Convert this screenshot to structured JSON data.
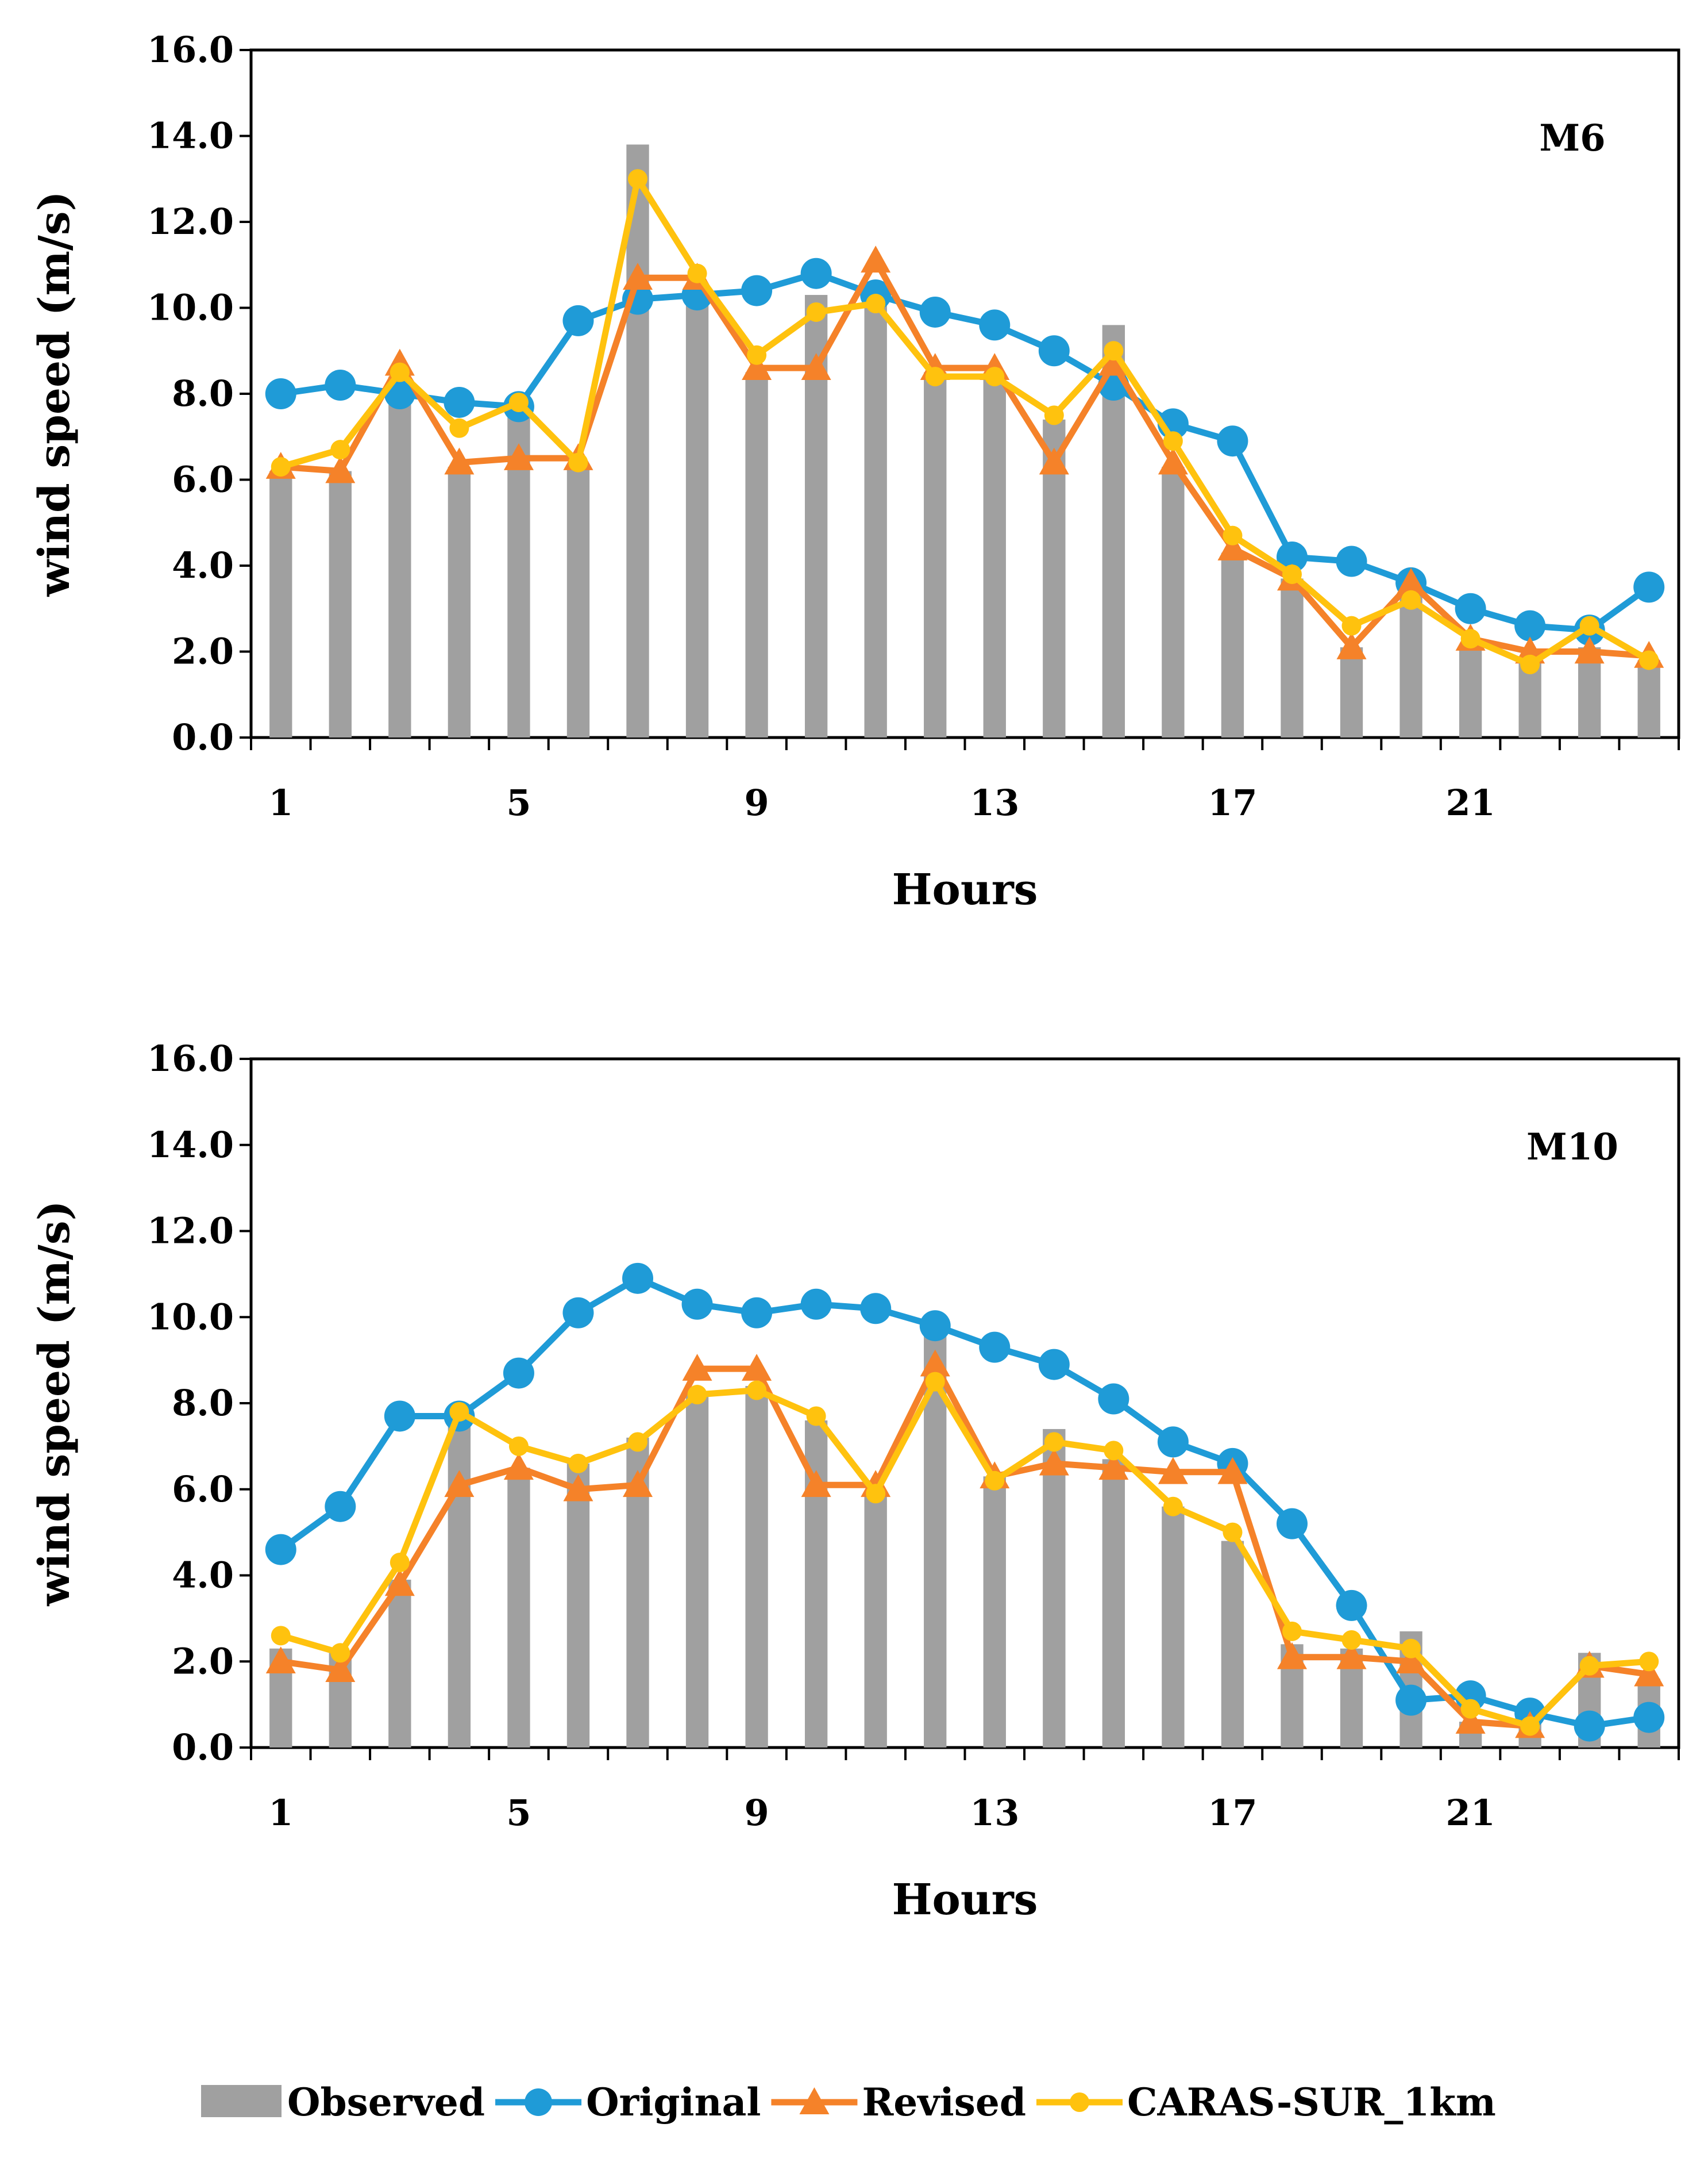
{
  "legend": [
    {
      "name": "Observed",
      "color": "#a0a0a0",
      "kind": "bar"
    },
    {
      "name": "Original",
      "color": "#1f9bd7",
      "kind": "circle"
    },
    {
      "name": "Revised",
      "color": "#f58229",
      "kind": "triangle"
    },
    {
      "name": "CARAS-SUR_1km",
      "color": "#ffc20e",
      "kind": "dot"
    }
  ],
  "chart_data": [
    {
      "type": "bar+line",
      "panel_label": "M6",
      "xlabel": "Hours",
      "ylabel": "wind speed (m/s)",
      "ylim": [
        0,
        16
      ],
      "yticks": [
        "0.0",
        "2.0",
        "4.0",
        "6.0",
        "8.0",
        "10.0",
        "12.0",
        "14.0",
        "16.0"
      ],
      "xticks": [
        "1",
        "5",
        "9",
        "13",
        "17",
        "21"
      ],
      "x": [
        1,
        2,
        3,
        4,
        5,
        6,
        7,
        8,
        9,
        10,
        11,
        12,
        13,
        14,
        15,
        16,
        17,
        18,
        19,
        20,
        21,
        22,
        23,
        24
      ],
      "series": [
        {
          "name": "Observed",
          "kind": "bar",
          "color": "#a0a0a0",
          "values": [
            6.2,
            6.2,
            8.4,
            6.3,
            7.6,
            6.3,
            13.8,
            10.5,
            8.5,
            10.3,
            10.3,
            8.5,
            8.4,
            7.4,
            9.6,
            6.3,
            4.3,
            3.7,
            2.1,
            3.5,
            2.1,
            1.8,
            2.1,
            1.8
          ]
        },
        {
          "name": "Original",
          "kind": "circle",
          "color": "#1f9bd7",
          "values": [
            8.0,
            8.2,
            8.0,
            7.8,
            7.7,
            9.7,
            10.2,
            10.3,
            10.4,
            10.8,
            10.3,
            9.9,
            9.6,
            9.0,
            8.2,
            7.3,
            6.9,
            4.2,
            4.1,
            3.6,
            3.0,
            2.6,
            2.5,
            3.5
          ]
        },
        {
          "name": "Revised",
          "kind": "triangle",
          "color": "#f58229",
          "values": [
            6.3,
            6.2,
            8.7,
            6.4,
            6.5,
            6.5,
            10.7,
            10.7,
            8.6,
            8.6,
            11.1,
            8.6,
            8.6,
            6.4,
            8.7,
            6.4,
            4.4,
            3.7,
            2.1,
            3.6,
            2.3,
            2.0,
            2.0,
            1.9
          ]
        },
        {
          "name": "CARAS-SUR_1km",
          "kind": "dot",
          "color": "#ffc20e",
          "values": [
            6.3,
            6.7,
            8.5,
            7.2,
            7.8,
            6.4,
            13.0,
            10.8,
            8.9,
            9.9,
            10.1,
            8.4,
            8.4,
            7.5,
            9.0,
            6.9,
            4.7,
            3.8,
            2.6,
            3.2,
            2.3,
            1.7,
            2.6,
            1.8
          ]
        }
      ]
    },
    {
      "type": "bar+line",
      "panel_label": "M10",
      "xlabel": "Hours",
      "ylabel": "wind speed (m/s)",
      "ylim": [
        0,
        16
      ],
      "yticks": [
        "0.0",
        "2.0",
        "4.0",
        "6.0",
        "8.0",
        "10.0",
        "12.0",
        "14.0",
        "16.0"
      ],
      "xticks": [
        "1",
        "5",
        "9",
        "13",
        "17",
        "21"
      ],
      "x": [
        1,
        2,
        3,
        4,
        5,
        6,
        7,
        8,
        9,
        10,
        11,
        12,
        13,
        14,
        15,
        16,
        17,
        18,
        19,
        20,
        21,
        22,
        23,
        24
      ],
      "series": [
        {
          "name": "Observed",
          "kind": "bar",
          "color": "#a0a0a0",
          "values": [
            2.3,
            2.2,
            3.9,
            7.5,
            6.5,
            6.6,
            7.2,
            8.2,
            8.4,
            7.6,
            5.9,
            9.7,
            6.3,
            7.4,
            6.7,
            5.6,
            4.8,
            2.4,
            2.3,
            2.7,
            0.6,
            0.6,
            2.2,
            1.6
          ]
        },
        {
          "name": "Original",
          "kind": "circle",
          "color": "#1f9bd7",
          "values": [
            4.6,
            5.6,
            7.7,
            7.7,
            8.7,
            10.1,
            10.9,
            10.3,
            10.1,
            10.3,
            10.2,
            9.8,
            9.3,
            8.9,
            8.1,
            7.1,
            6.6,
            5.2,
            3.3,
            1.1,
            1.2,
            0.8,
            0.5,
            0.7
          ]
        },
        {
          "name": "Revised",
          "kind": "triangle",
          "color": "#f58229",
          "values": [
            2.0,
            1.8,
            3.8,
            6.1,
            6.5,
            6.0,
            6.1,
            8.8,
            8.8,
            6.1,
            6.1,
            8.9,
            6.3,
            6.6,
            6.5,
            6.4,
            6.4,
            2.1,
            2.1,
            2.0,
            0.6,
            0.5,
            1.9,
            1.7
          ]
        },
        {
          "name": "CARAS-SUR_1km",
          "kind": "dot",
          "color": "#ffc20e",
          "values": [
            2.6,
            2.2,
            4.3,
            7.8,
            7.0,
            6.6,
            7.1,
            8.2,
            8.3,
            7.7,
            5.9,
            8.5,
            6.2,
            7.1,
            6.9,
            5.6,
            5.0,
            2.7,
            2.5,
            2.3,
            0.9,
            0.5,
            1.9,
            2.0
          ]
        }
      ]
    }
  ]
}
